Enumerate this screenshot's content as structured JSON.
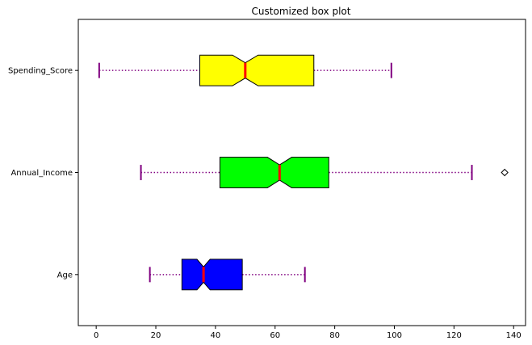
{
  "chart_data": {
    "type": "box",
    "orientation": "horizontal",
    "title": "Customized box plot",
    "xlabel": "",
    "ylabel": "",
    "xlim": [
      -6,
      144
    ],
    "xticks": [
      0,
      20,
      40,
      60,
      80,
      100,
      120,
      140
    ],
    "grid": false,
    "notched": true,
    "categories": [
      "Age",
      "Annual_Income",
      "Spending_Score"
    ],
    "series": [
      {
        "label": "Age",
        "whisker_low": 18,
        "q1": 28.75,
        "median": 36,
        "q3": 49,
        "whisker_high": 70,
        "notch_low": 33.8,
        "notch_high": 38.2,
        "outliers": [],
        "fill": "#0000ff"
      },
      {
        "label": "Annual_Income",
        "whisker_low": 15,
        "q1": 41.5,
        "median": 61.5,
        "q3": 78,
        "whisker_high": 126,
        "notch_low": 57.4,
        "notch_high": 65.6,
        "outliers": [
          137
        ],
        "fill": "#00ff00"
      },
      {
        "label": "Spending_Score",
        "whisker_low": 1,
        "q1": 34.75,
        "median": 50,
        "q3": 73,
        "whisker_high": 99,
        "notch_low": 45.7,
        "notch_high": 54.3,
        "outliers": [],
        "fill": "#ffff00"
      }
    ],
    "colors": {
      "median": "#ff0000",
      "whisker": "#800080",
      "cap": "#800080",
      "box_edge": "#000000",
      "outlier_edge": "#000000"
    }
  }
}
